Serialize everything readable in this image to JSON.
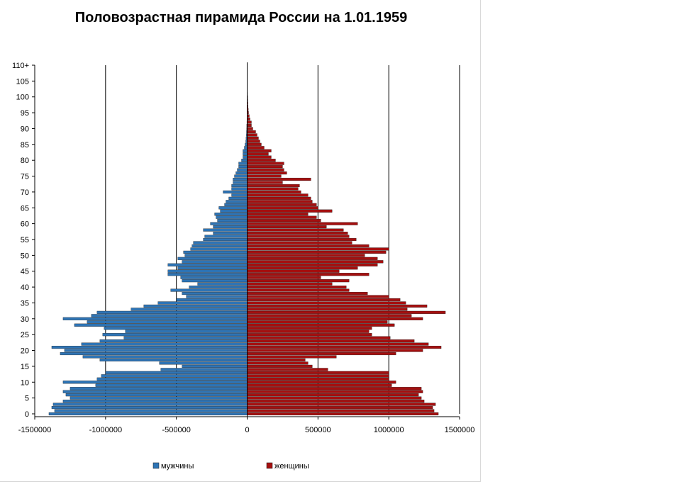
{
  "chart_data": {
    "type": "bar",
    "title": "Половозрастная пирамида России на 1.01.1959",
    "orientation": "horizontal-pyramid",
    "xlim": [
      -1500000,
      1500000
    ],
    "x_ticks": [
      "-1500000",
      "-1000000",
      "-500000",
      "0",
      "500000",
      "1000000",
      "1500000"
    ],
    "y_ticks": [
      "0",
      "5",
      "10",
      "15",
      "20",
      "25",
      "30",
      "35",
      "40",
      "45",
      "50",
      "55",
      "60",
      "65",
      "70",
      "75",
      "80",
      "85",
      "90",
      "95",
      "100",
      "105",
      "110+"
    ],
    "grid": "vertical",
    "legend_position": "bottom",
    "colors": {
      "men": "#2e74b5",
      "women": "#a50f0f"
    },
    "series": [
      {
        "name": "мужчины",
        "sign": -1,
        "values": [
          1400000,
          1360000,
          1380000,
          1370000,
          1300000,
          1250000,
          1280000,
          1300000,
          1250000,
          1070000,
          1300000,
          1060000,
          1030000,
          1000000,
          610000,
          460000,
          620000,
          1040000,
          1160000,
          1320000,
          1290000,
          1380000,
          1170000,
          1040000,
          870000,
          1020000,
          860000,
          1010000,
          1220000,
          1130000,
          1300000,
          1100000,
          1060000,
          820000,
          730000,
          630000,
          500000,
          430000,
          460000,
          540000,
          410000,
          350000,
          460000,
          470000,
          560000,
          560000,
          490000,
          560000,
          460000,
          490000,
          440000,
          450000,
          400000,
          390000,
          380000,
          310000,
          300000,
          240000,
          310000,
          240000,
          260000,
          210000,
          220000,
          230000,
          190000,
          200000,
          160000,
          150000,
          130000,
          110000,
          170000,
          110000,
          110000,
          100000,
          100000,
          90000,
          80000,
          70000,
          60000,
          60000,
          40000,
          30000,
          30000,
          30000,
          20000,
          15000,
          10000,
          8000,
          6000,
          5000,
          4000,
          3000,
          2000,
          1500,
          1000,
          600,
          500,
          400,
          300,
          200,
          150,
          100,
          80,
          60,
          40,
          30,
          20,
          15,
          10,
          5,
          5
        ]
      },
      {
        "name": "женщины",
        "sign": 1,
        "values": [
          1350000,
          1320000,
          1310000,
          1330000,
          1250000,
          1230000,
          1210000,
          1240000,
          1230000,
          1020000,
          1050000,
          1000000,
          1000000,
          1000000,
          570000,
          460000,
          430000,
          410000,
          630000,
          1050000,
          1240000,
          1370000,
          1280000,
          1180000,
          1010000,
          880000,
          860000,
          880000,
          1040000,
          990000,
          1240000,
          1160000,
          1400000,
          1130000,
          1270000,
          1120000,
          1080000,
          1000000,
          850000,
          720000,
          700000,
          600000,
          720000,
          520000,
          860000,
          650000,
          780000,
          920000,
          960000,
          920000,
          830000,
          980000,
          1000000,
          860000,
          740000,
          770000,
          720000,
          710000,
          680000,
          560000,
          780000,
          520000,
          490000,
          430000,
          600000,
          500000,
          490000,
          460000,
          450000,
          430000,
          380000,
          360000,
          370000,
          250000,
          450000,
          240000,
          280000,
          260000,
          250000,
          260000,
          200000,
          170000,
          150000,
          170000,
          120000,
          100000,
          90000,
          80000,
          70000,
          60000,
          40000,
          30000,
          30000,
          20000,
          15000,
          10000,
          8000,
          6000,
          5000,
          4000,
          3000,
          2000,
          1500,
          1000,
          700,
          500,
          300,
          200,
          100,
          50,
          30
        ]
      }
    ]
  }
}
